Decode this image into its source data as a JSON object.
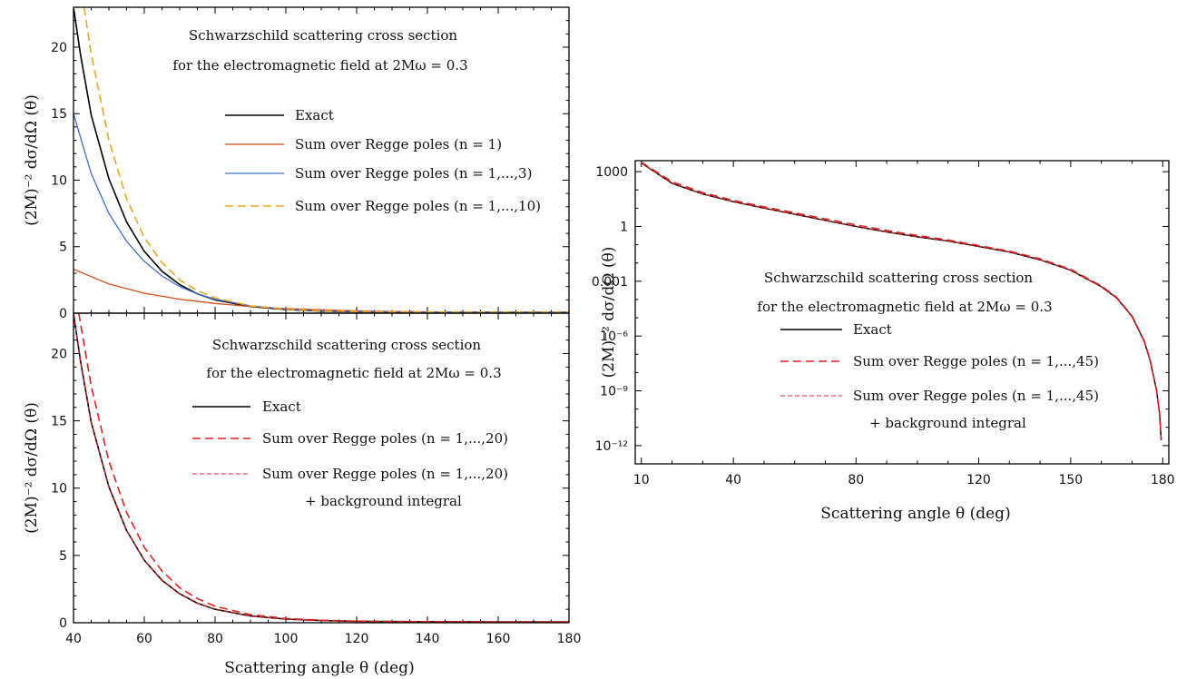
{
  "chart_data": [
    {
      "type": "line",
      "annotation": [
        "Schwarzschild scattering cross section",
        "for the electromagnetic field at 2Mω = 0.3"
      ],
      "ylabel": "(2M)⁻² dσ/dΩ (θ)",
      "xlim": [
        40,
        180
      ],
      "ylim": [
        0,
        23
      ],
      "yticks": [
        "0",
        "5",
        "10",
        "15",
        "20"
      ],
      "legend_placement": "right",
      "series": [
        {
          "name": "Exact",
          "color": "#000000",
          "style": "solid",
          "width": 1.6,
          "x": [
            40,
            42,
            45,
            50,
            55,
            60,
            65,
            70,
            75,
            80,
            90,
            100,
            110,
            120,
            130,
            140,
            150,
            160,
            170,
            180
          ],
          "y": [
            23.0,
            19.4,
            14.9,
            10.1,
            6.85,
            4.65,
            3.15,
            2.15,
            1.45,
            1.0,
            0.5,
            0.27,
            0.16,
            0.11,
            0.09,
            0.08,
            0.075,
            0.07,
            0.07,
            0.07
          ]
        },
        {
          "name": "Sum over Regge poles (n = 1)",
          "color": "#d24b16",
          "style": "solid",
          "width": 1.3,
          "x": [
            40,
            50,
            60,
            70,
            80,
            90,
            100,
            110,
            120,
            130,
            140,
            150,
            160,
            170,
            180
          ],
          "y": [
            3.3,
            2.2,
            1.5,
            1.05,
            0.73,
            0.5,
            0.35,
            0.25,
            0.18,
            0.13,
            0.1,
            0.08,
            0.07,
            0.07,
            0.07
          ]
        },
        {
          "name": "Sum over Regge poles (n = 1,...,3)",
          "color": "#3d6fd0",
          "style": "solid",
          "width": 1.3,
          "x": [
            40,
            45,
            50,
            55,
            60,
            65,
            70,
            75,
            80,
            90,
            100,
            110,
            120,
            130,
            140,
            150,
            160,
            170,
            180
          ],
          "y": [
            15.0,
            10.5,
            7.5,
            5.4,
            3.9,
            2.8,
            2.0,
            1.45,
            1.05,
            0.55,
            0.3,
            0.18,
            0.12,
            0.09,
            0.08,
            0.075,
            0.07,
            0.07,
            0.07
          ]
        },
        {
          "name": "Sum over Regge poles (n = 1,...,10)",
          "color": "#f0a520",
          "style": "dashed",
          "width": 1.6,
          "x": [
            43,
            45,
            50,
            55,
            60,
            65,
            70,
            75,
            80,
            90,
            100,
            110,
            120,
            130,
            140,
            150,
            160,
            170,
            180
          ],
          "y": [
            23.0,
            19.5,
            13.0,
            8.6,
            5.7,
            3.8,
            2.5,
            1.7,
            1.15,
            0.55,
            0.3,
            0.18,
            0.12,
            0.09,
            0.08,
            0.075,
            0.07,
            0.07,
            0.07
          ]
        }
      ]
    },
    {
      "type": "line",
      "annotation": [
        "Schwarzschild scattering cross section",
        "for the electromagnetic field at 2Mω = 0.3"
      ],
      "xlabel": "Scattering angle θ (deg)",
      "ylabel": "(2M)⁻² dσ/dΩ (θ)",
      "xlim": [
        40,
        180
      ],
      "ylim": [
        0,
        23
      ],
      "xticks": [
        "40",
        "60",
        "80",
        "100",
        "120",
        "140",
        "160",
        "180"
      ],
      "yticks": [
        "0",
        "5",
        "10",
        "15",
        "20"
      ],
      "legend_placement": "right",
      "legend_extra": "+  background integral",
      "series": [
        {
          "name": "Exact",
          "color": "#000000",
          "style": "solid",
          "width": 1.6,
          "x": [
            40,
            42,
            45,
            50,
            55,
            60,
            65,
            70,
            75,
            80,
            90,
            100,
            110,
            120,
            130,
            140,
            150,
            160,
            170,
            180
          ],
          "y": [
            23.0,
            19.4,
            14.9,
            10.1,
            6.85,
            4.65,
            3.15,
            2.15,
            1.45,
            1.0,
            0.5,
            0.27,
            0.16,
            0.11,
            0.09,
            0.08,
            0.075,
            0.07,
            0.07,
            0.07
          ]
        },
        {
          "name": "Sum over Regge poles (n = 1,...,20)",
          "color": "#e02020",
          "style": "dashed",
          "width": 1.6,
          "x": [
            41.5,
            45,
            50,
            55,
            60,
            65,
            70,
            75,
            80,
            90,
            100,
            110,
            120,
            130,
            140,
            150,
            160,
            170,
            180
          ],
          "y": [
            23.0,
            17.6,
            12.0,
            8.2,
            5.6,
            3.85,
            2.6,
            1.8,
            1.22,
            0.6,
            0.32,
            0.18,
            0.12,
            0.09,
            0.08,
            0.075,
            0.07,
            0.07,
            0.07
          ]
        },
        {
          "name": "Sum over Regge poles (n = 1,...,20)",
          "color": "#e02020",
          "style": "dashed-thin",
          "width": 1.0,
          "x": [
            40,
            42,
            45,
            50,
            55,
            60,
            65,
            70,
            75,
            80,
            90,
            100,
            110,
            120,
            130,
            140,
            150,
            160,
            170,
            180
          ],
          "y": [
            23.0,
            19.4,
            14.9,
            10.1,
            6.85,
            4.65,
            3.15,
            2.15,
            1.45,
            1.0,
            0.5,
            0.27,
            0.16,
            0.11,
            0.09,
            0.08,
            0.075,
            0.07,
            0.07,
            0.07
          ]
        }
      ]
    },
    {
      "type": "line",
      "yscale": "log",
      "annotation": [
        "Schwarzschild scattering cross section",
        "for the electromagnetic field at 2Mω = 0.3"
      ],
      "xlabel": "Scattering angle θ (deg)",
      "ylabel": "(2M)⁻² dσ/dΩ (θ)",
      "xlim": [
        8,
        182
      ],
      "ylim": [
        1e-13,
        4000
      ],
      "xticks": [
        "10",
        "40",
        "80",
        "120",
        "150",
        "180"
      ],
      "yticks": [
        "1000",
        "1",
        "0.001",
        "10⁻⁶",
        "10⁻⁹",
        "10⁻¹²"
      ],
      "legend_placement": "center",
      "legend_extra": "+  background integral",
      "series": [
        {
          "name": "Exact",
          "color": "#000000",
          "style": "solid",
          "width": 1.5,
          "x": [
            10,
            20,
            30,
            40,
            50,
            60,
            70,
            80,
            90,
            100,
            110,
            120,
            130,
            140,
            150,
            160,
            165,
            170,
            174,
            176,
            178,
            179,
            179.5
          ],
          "y": [
            3000,
            230,
            60,
            23,
            10.1,
            4.65,
            2.15,
            1.0,
            0.5,
            0.27,
            0.16,
            0.08,
            0.04,
            0.015,
            0.004,
            0.0005,
            0.00012,
            1.2e-05,
            5e-07,
            4e-08,
            1e-09,
            5e-11,
            2e-12
          ]
        },
        {
          "name": "Sum over Regge poles (n = 1,...,45)",
          "color": "#e02020",
          "style": "dashed",
          "width": 1.5,
          "x": [
            10,
            20,
            30,
            40,
            50,
            60,
            70,
            80,
            90,
            100,
            110,
            120,
            130,
            140,
            150,
            160,
            165,
            170,
            174,
            176,
            178,
            179,
            179.5
          ],
          "y": [
            3300,
            280,
            72,
            27,
            12.0,
            5.6,
            2.6,
            1.22,
            0.6,
            0.32,
            0.18,
            0.09,
            0.045,
            0.017,
            0.0045,
            0.00055,
            0.00013,
            1.3e-05,
            5.5e-07,
            4.5e-08,
            1.1e-09,
            5.5e-11,
            2.2e-12
          ]
        },
        {
          "name": "Sum over Regge poles (n = 1,...,45)",
          "color": "#e02020",
          "style": "dashed-thin",
          "width": 1.0,
          "x": [
            10,
            20,
            30,
            40,
            50,
            60,
            70,
            80,
            90,
            100,
            110,
            120,
            130,
            140,
            150,
            160,
            165,
            170,
            174,
            176,
            178,
            179,
            179.5
          ],
          "y": [
            3000,
            230,
            60,
            23,
            10.1,
            4.65,
            2.15,
            1.0,
            0.5,
            0.27,
            0.16,
            0.08,
            0.04,
            0.015,
            0.004,
            0.0005,
            0.00012,
            1.2e-05,
            5e-07,
            4e-08,
            1e-09,
            5e-11,
            2e-12
          ]
        }
      ]
    }
  ]
}
